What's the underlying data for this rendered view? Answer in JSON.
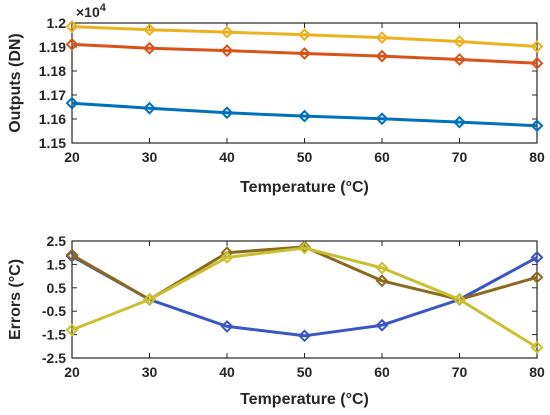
{
  "chart_data": [
    {
      "type": "line",
      "title": "",
      "xlabel": "Temperature (°C)",
      "ylabel": "Outputs (DN)",
      "exponent_label": "×10",
      "exponent_power": "4",
      "x": [
        20,
        30,
        40,
        50,
        60,
        70,
        80
      ],
      "xlim": [
        20,
        80
      ],
      "ylim": [
        1.15,
        1.2
      ],
      "x_ticks": [
        "20",
        "30",
        "40",
        "50",
        "60",
        "70",
        "80"
      ],
      "y_tick_values": [
        1.15,
        1.16,
        1.17,
        1.18,
        1.19,
        1.2
      ],
      "y_ticks": [
        "1.15",
        "1.16",
        "1.17",
        "1.18",
        "1.19",
        "1.2"
      ],
      "grid": false,
      "marker": "diamond",
      "series": [
        {
          "color": "#0072BD",
          "values": [
            1.1666,
            1.1645,
            1.1626,
            1.1612,
            1.1601,
            1.1587,
            1.1572
          ]
        },
        {
          "color": "#D95319",
          "values": [
            1.1911,
            1.1895,
            1.1885,
            1.1873,
            1.1862,
            1.1848,
            1.1832
          ]
        },
        {
          "color": "#EDB120",
          "values": [
            1.1985,
            1.1972,
            1.1962,
            1.1951,
            1.1939,
            1.1923,
            1.1902
          ]
        }
      ]
    },
    {
      "type": "line",
      "title": "",
      "xlabel": "Temperature (°C)",
      "ylabel": "Errors (°C)",
      "x": [
        20,
        30,
        40,
        50,
        60,
        70,
        80
      ],
      "xlim": [
        20,
        80
      ],
      "ylim": [
        -2.5,
        2.5
      ],
      "x_ticks": [
        "20",
        "30",
        "40",
        "50",
        "60",
        "70",
        "80"
      ],
      "y_tick_values": [
        2.5,
        1.5,
        0.5,
        -0.5,
        -1.5,
        -2.5
      ],
      "y_ticks": [
        "2.5",
        "1.5",
        "0.5",
        "-0.5",
        "-1.5",
        "-2.5"
      ],
      "grid": false,
      "marker": "diamond",
      "series": [
        {
          "color": "#3A56C4",
          "values": [
            1.85,
            0.0,
            -1.15,
            -1.55,
            -1.1,
            0.0,
            1.8
          ]
        },
        {
          "color": "#8B6A1E",
          "values": [
            1.9,
            0.0,
            2.0,
            2.25,
            0.8,
            0.0,
            0.95
          ]
        },
        {
          "color": "#C8C030",
          "values": [
            -1.3,
            0.0,
            1.8,
            2.2,
            1.35,
            0.0,
            -2.05
          ]
        }
      ]
    }
  ]
}
